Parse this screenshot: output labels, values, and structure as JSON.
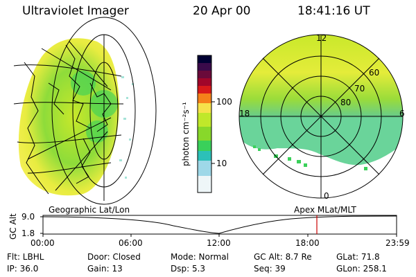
{
  "header": {
    "title": "Ultraviolet Imager",
    "date": "20 Apr 00",
    "time": "18:41:16 UT"
  },
  "colorbar": {
    "label": "photon cm⁻²s⁻¹",
    "ticks": [
      "100",
      "10"
    ],
    "colors": [
      "#000033",
      "#3a0a4a",
      "#6a0a3a",
      "#a0062a",
      "#d81a1a",
      "#f5811a",
      "#f6e24a",
      "#c0e82a",
      "#88d82a",
      "#3ad05a",
      "#2cc0b8",
      "#9ed8e8",
      "#ffffff"
    ]
  },
  "polar_plot": {
    "mlt_labels": {
      "top": "12",
      "left": "18",
      "right": "6",
      "bottom": "0"
    },
    "lat_labels": [
      "60",
      "70",
      "80"
    ]
  },
  "timeline": {
    "left_label": "Geographic Lat/Lon",
    "right_label": "Apex MLat/MLT",
    "axis_title": "GC Alt",
    "y_ticks": [
      "9.0",
      "1.8"
    ],
    "x_ticks": [
      "00:00",
      "06:00",
      "12:00",
      "18:00",
      "23:59"
    ],
    "marker_time": "18:41"
  },
  "info": {
    "flt": "Flt: LBHL",
    "door": "Door: Closed",
    "mode": "Mode: Normal",
    "gcalt": "GC Alt: 8.7 Re",
    "glat": "GLat:  71.8",
    "ip": "IP: 36.0",
    "gain": "Gain: 13",
    "dsp": "Dsp:     5.3",
    "seq": "Seq: 39",
    "glon": "GLon: 258.1"
  },
  "colors": {
    "marker": "#cc0000",
    "green": "#7fd83a",
    "yellow": "#f0ee3a",
    "cyan": "#33c2b0"
  }
}
